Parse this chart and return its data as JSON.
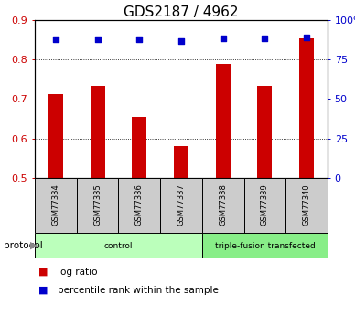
{
  "title": "GDS2187 / 4962",
  "samples": [
    "GSM77334",
    "GSM77335",
    "GSM77336",
    "GSM77337",
    "GSM77338",
    "GSM77339",
    "GSM77340"
  ],
  "log_ratio": [
    0.712,
    0.733,
    0.655,
    0.581,
    0.789,
    0.733,
    0.854
  ],
  "percentile_rank": [
    88,
    88,
    88,
    86.5,
    88.5,
    88.5,
    89
  ],
  "ylim_left": [
    0.5,
    0.9
  ],
  "ylim_right": [
    0,
    100
  ],
  "yticks_left": [
    0.5,
    0.6,
    0.7,
    0.8,
    0.9
  ],
  "yticks_right": [
    0,
    25,
    50,
    75,
    100
  ],
  "ytick_labels_right": [
    "0",
    "25",
    "50",
    "75",
    "100%"
  ],
  "bar_color": "#cc0000",
  "dot_color": "#0000cc",
  "bar_bottom": 0.5,
  "protocol_groups": [
    {
      "label": "control",
      "start": 0,
      "end": 4,
      "color": "#bbffbb"
    },
    {
      "label": "triple-fusion transfected",
      "start": 4,
      "end": 7,
      "color": "#88ee88"
    }
  ],
  "sample_box_color": "#cccccc",
  "ylabel_left_color": "#cc0000",
  "ylabel_right_color": "#0000cc",
  "title_fontsize": 11,
  "tick_fontsize": 8,
  "bar_width": 0.35,
  "legend_items": [
    {
      "color": "#cc0000",
      "label": "log ratio"
    },
    {
      "color": "#0000cc",
      "label": "percentile rank within the sample"
    }
  ]
}
